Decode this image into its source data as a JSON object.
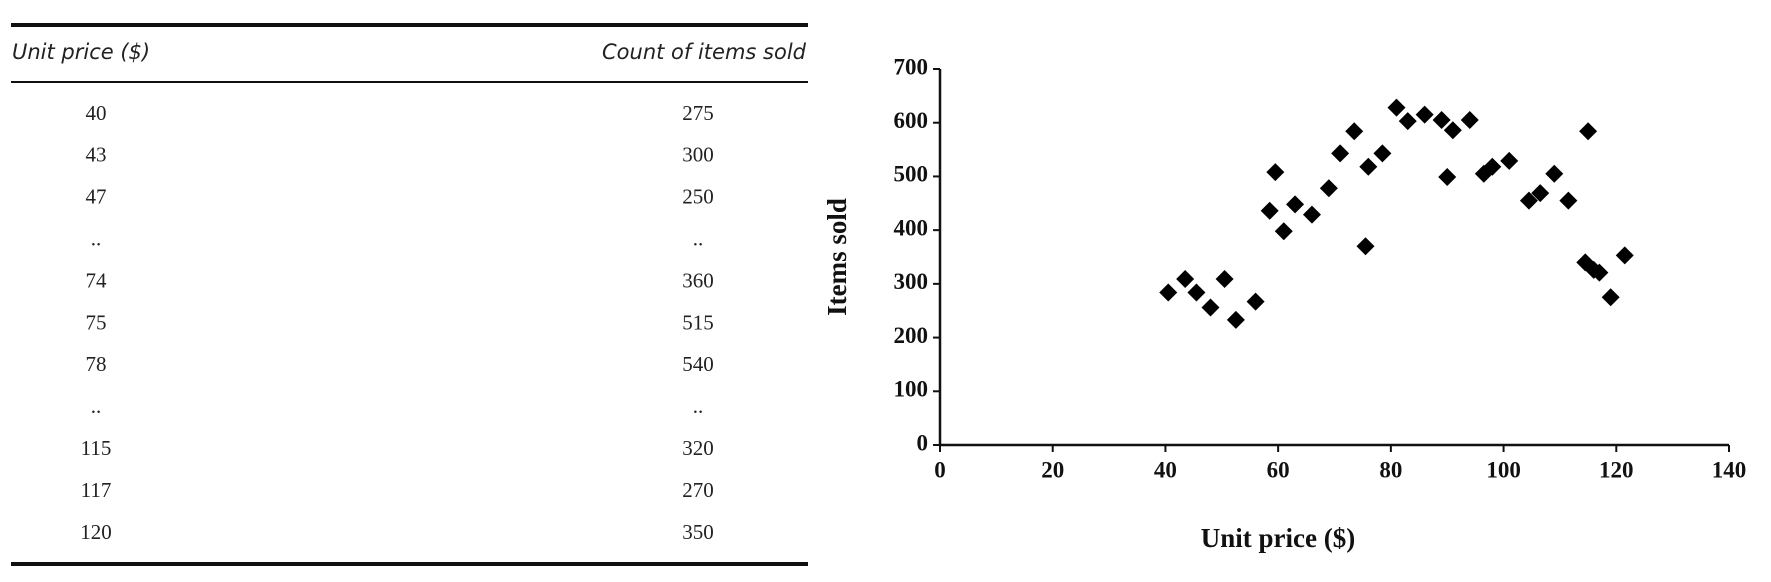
{
  "table": {
    "columns": [
      "Unit price ($)",
      "Count of items sold"
    ],
    "rows": [
      [
        "40",
        "275"
      ],
      [
        "43",
        "300"
      ],
      [
        "47",
        "250"
      ],
      [
        "..",
        ".."
      ],
      [
        "74",
        "360"
      ],
      [
        "75",
        "515"
      ],
      [
        "78",
        "540"
      ],
      [
        "..",
        ".."
      ],
      [
        "115",
        "320"
      ],
      [
        "117",
        "270"
      ],
      [
        "120",
        "350"
      ]
    ]
  },
  "chart_data": {
    "type": "scatter",
    "x_label": "Unit price ($)",
    "y_label": "Items sold",
    "color": "#000000",
    "marker": "diamond",
    "x": [
      40.5,
      43.5,
      45.5,
      48,
      50.5,
      52.5,
      56,
      58.5,
      59.5,
      61,
      63,
      66,
      69,
      71,
      73.5,
      75.5,
      76,
      78.5,
      81,
      83,
      86,
      89,
      90,
      91,
      94,
      96.5,
      98,
      101,
      104.5,
      106.5,
      109,
      111.5,
      114.5,
      115,
      116,
      117,
      119,
      121.5
    ],
    "y": [
      284,
      309,
      284,
      256,
      309,
      233,
      267,
      436,
      508,
      398,
      448,
      429,
      478,
      543,
      584,
      370,
      518,
      543,
      628,
      603,
      615,
      605,
      499,
      586,
      605,
      505,
      518,
      529,
      455,
      469,
      505,
      455,
      340,
      584,
      326,
      321,
      275,
      353
    ],
    "xlim": [
      0,
      140
    ],
    "ylim": [
      0,
      700
    ],
    "xticks": [
      0,
      20,
      40,
      60,
      80,
      100,
      120,
      140
    ],
    "yticks": [
      0,
      100,
      200,
      300,
      400,
      500,
      600,
      700
    ],
    "grid": false
  }
}
